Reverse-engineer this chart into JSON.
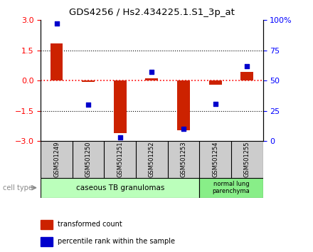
{
  "title": "GDS4256 / Hs2.434225.1.S1_3p_at",
  "samples": [
    "GSM501249",
    "GSM501250",
    "GSM501251",
    "GSM501252",
    "GSM501253",
    "GSM501254",
    "GSM501255"
  ],
  "transformed_counts": [
    1.85,
    -0.05,
    -2.6,
    0.1,
    -2.45,
    -0.2,
    0.45
  ],
  "percentile_ranks": [
    97,
    30,
    3,
    57,
    10,
    31,
    62
  ],
  "ylim": [
    -3,
    3
  ],
  "yticks_left": [
    -3,
    -1.5,
    0,
    1.5,
    3
  ],
  "yticks_right": [
    0,
    25,
    50,
    75,
    100
  ],
  "bar_color": "#cc2200",
  "dot_color": "#0000cc",
  "group1_indices": [
    0,
    1,
    2,
    3,
    4
  ],
  "group2_indices": [
    5,
    6
  ],
  "group1_label": "caseous TB granulomas",
  "group2_label": "normal lung\nparenchyma",
  "group1_color": "#bbffbb",
  "group2_color": "#88ee88",
  "sample_box_color": "#cccccc",
  "cell_type_label": "cell type",
  "legend_items": [
    {
      "color": "#cc2200",
      "label": "transformed count"
    },
    {
      "color": "#0000cc",
      "label": "percentile rank within the sample"
    }
  ]
}
